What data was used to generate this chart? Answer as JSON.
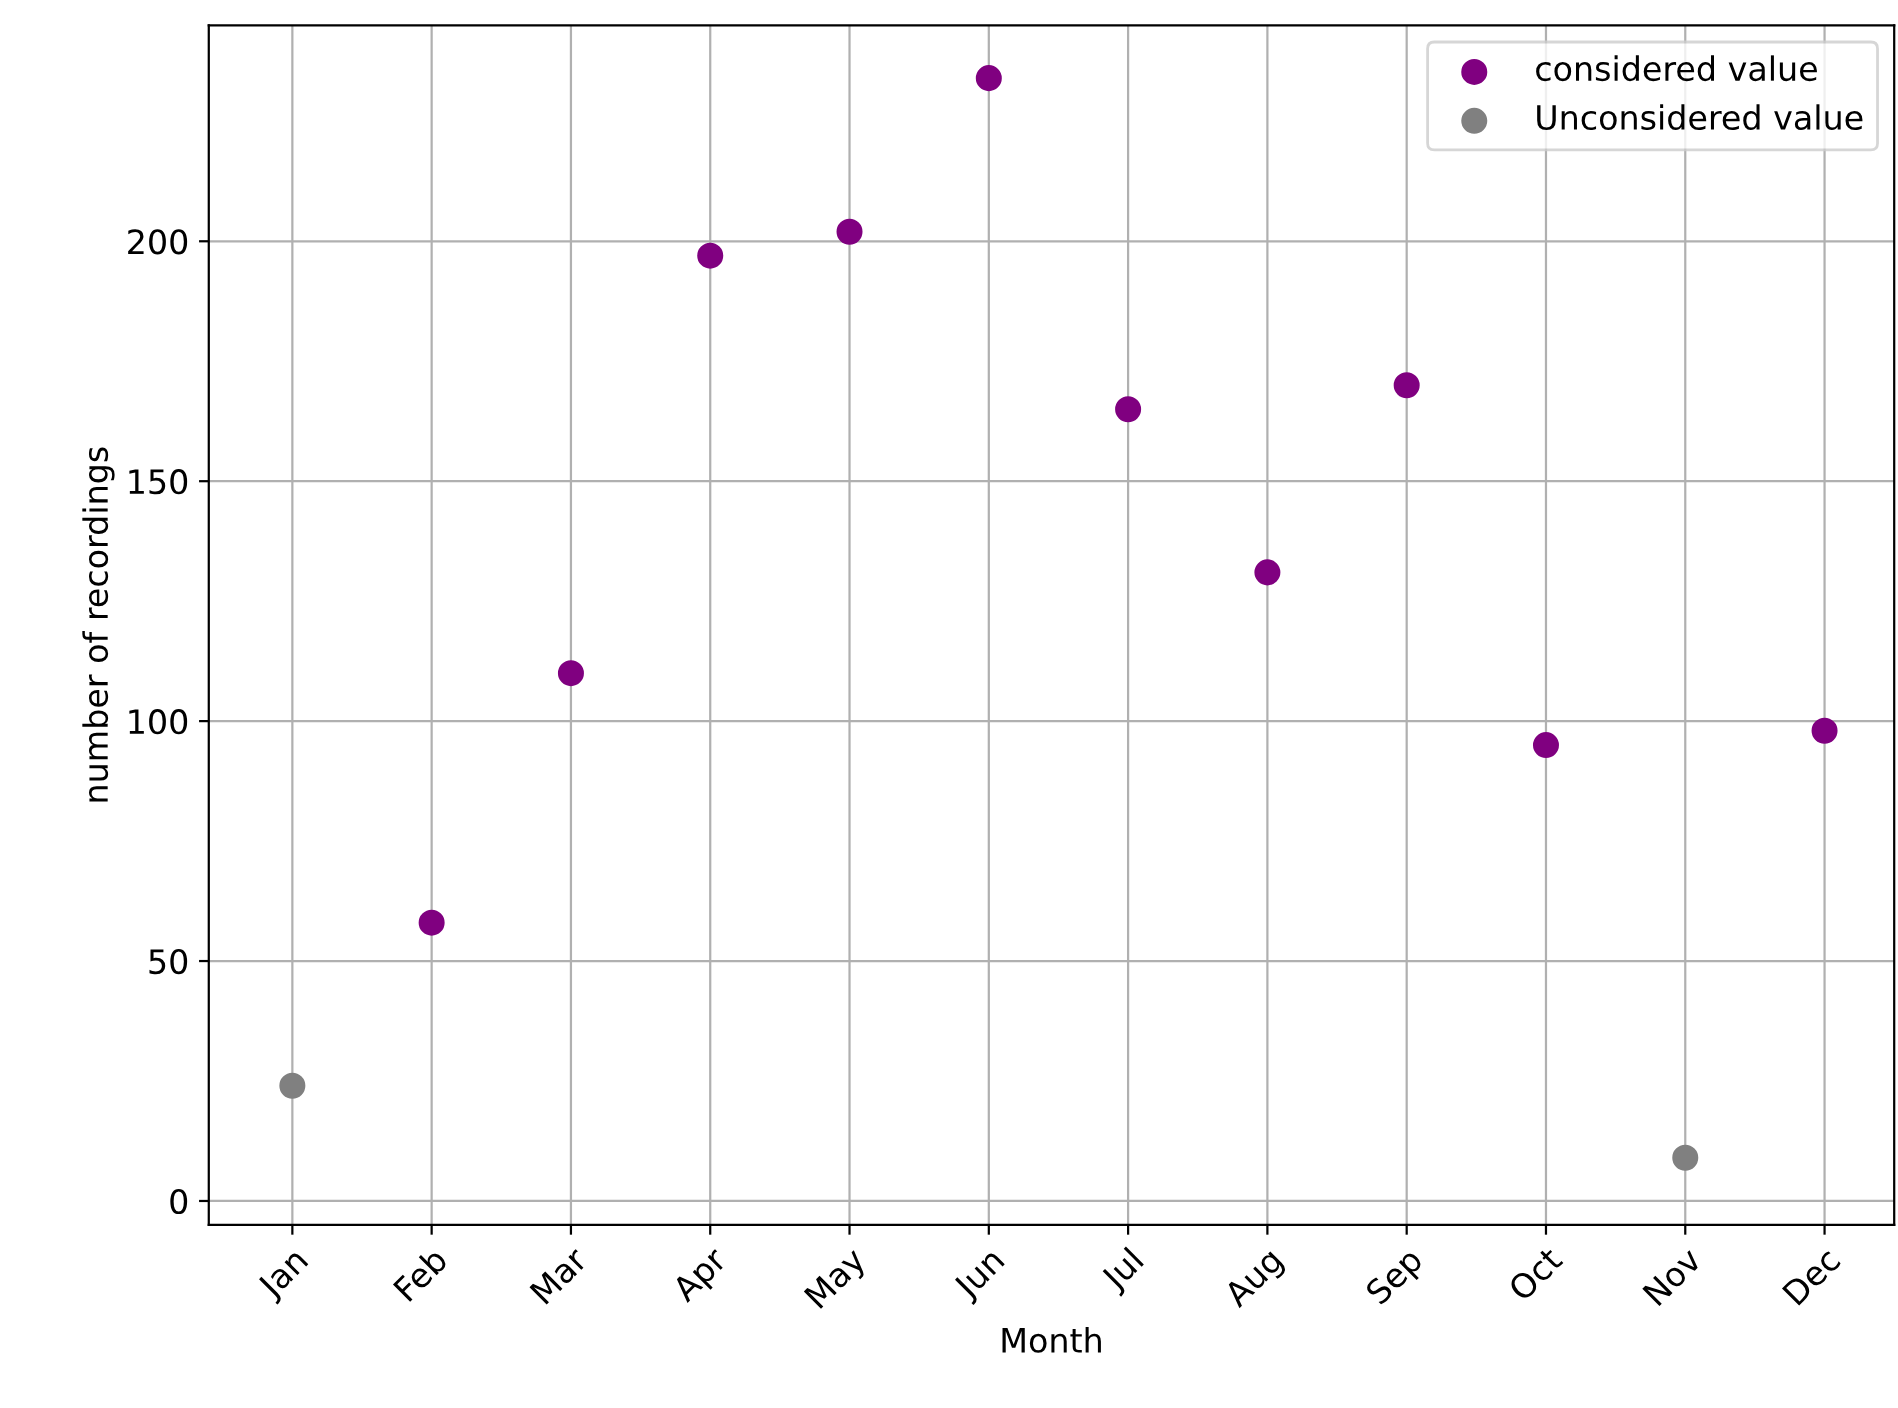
{
  "chart_data": {
    "type": "scatter",
    "xlabel": "Month",
    "ylabel": "number of recordings",
    "categories": [
      "Jan",
      "Feb",
      "Mar",
      "Apr",
      "May",
      "Jun",
      "Jul",
      "Aug",
      "Sep",
      "Oct",
      "Nov",
      "Dec"
    ],
    "series": [
      {
        "name": "considered value",
        "color": "#800080",
        "values": [
          null,
          58,
          110,
          197,
          202,
          234,
          165,
          131,
          170,
          95,
          null,
          98
        ]
      },
      {
        "name": "Unconsidered value",
        "color": "#808080",
        "values": [
          24,
          null,
          null,
          null,
          null,
          null,
          null,
          null,
          null,
          null,
          9,
          null
        ]
      }
    ],
    "ylim": [
      -5,
      245
    ],
    "yticks": [
      0,
      50,
      100,
      150,
      200
    ],
    "grid": true,
    "legend": "top right",
    "marker": "circle"
  }
}
